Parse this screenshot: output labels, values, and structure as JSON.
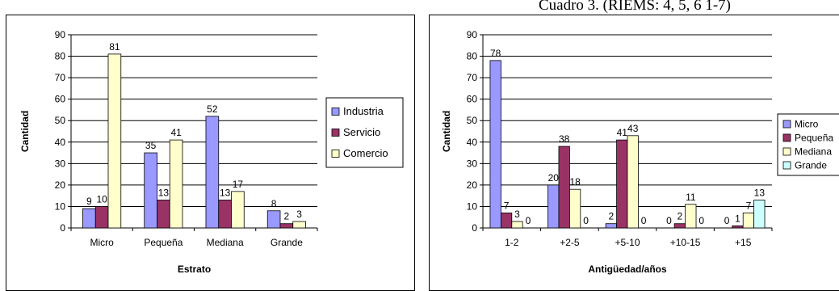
{
  "header": {
    "text": "Cuadro 3. (RIEMS: 4, 5, 6 1-7)"
  },
  "chart_data": [
    {
      "type": "bar",
      "categories": [
        "Micro",
        "Pequeña",
        "Mediana",
        "Grande"
      ],
      "series": [
        {
          "name": "Industria",
          "values": [
            9,
            35,
            52,
            8
          ],
          "color": "#9999ff"
        },
        {
          "name": "Servicio",
          "values": [
            10,
            13,
            13,
            2
          ],
          "color": "#993366"
        },
        {
          "name": "Comercio",
          "values": [
            81,
            41,
            17,
            3
          ],
          "color": "#ffffcc"
        }
      ],
      "title": "",
      "xlabel": "Estrato",
      "ylabel": "Cantidad",
      "ylim": [
        0,
        90
      ],
      "yticks": [
        0,
        10,
        20,
        30,
        40,
        50,
        60,
        70,
        80,
        90
      ],
      "grid": true,
      "legend": "right"
    },
    {
      "type": "bar",
      "categories": [
        "1-2",
        "+2-5",
        "+5-10",
        "+10-15",
        "+15"
      ],
      "series": [
        {
          "name": "Micro",
          "values": [
            78,
            20,
            2,
            0,
            0
          ],
          "color": "#9999ff"
        },
        {
          "name": "Pequeña",
          "values": [
            7,
            38,
            41,
            2,
            1
          ],
          "color": "#993366"
        },
        {
          "name": "Mediana",
          "values": [
            3,
            18,
            43,
            11,
            7
          ],
          "color": "#ffffcc"
        },
        {
          "name": "Grande",
          "values": [
            0,
            0,
            0,
            0,
            13
          ],
          "color": "#ccffff"
        }
      ],
      "title": "",
      "xlabel": "Antigüedad/años",
      "ylabel": "Cantidad",
      "ylim": [
        0,
        90
      ],
      "yticks": [
        0,
        10,
        20,
        30,
        40,
        50,
        60,
        70,
        80,
        90
      ],
      "grid": true,
      "legend": "right"
    }
  ]
}
